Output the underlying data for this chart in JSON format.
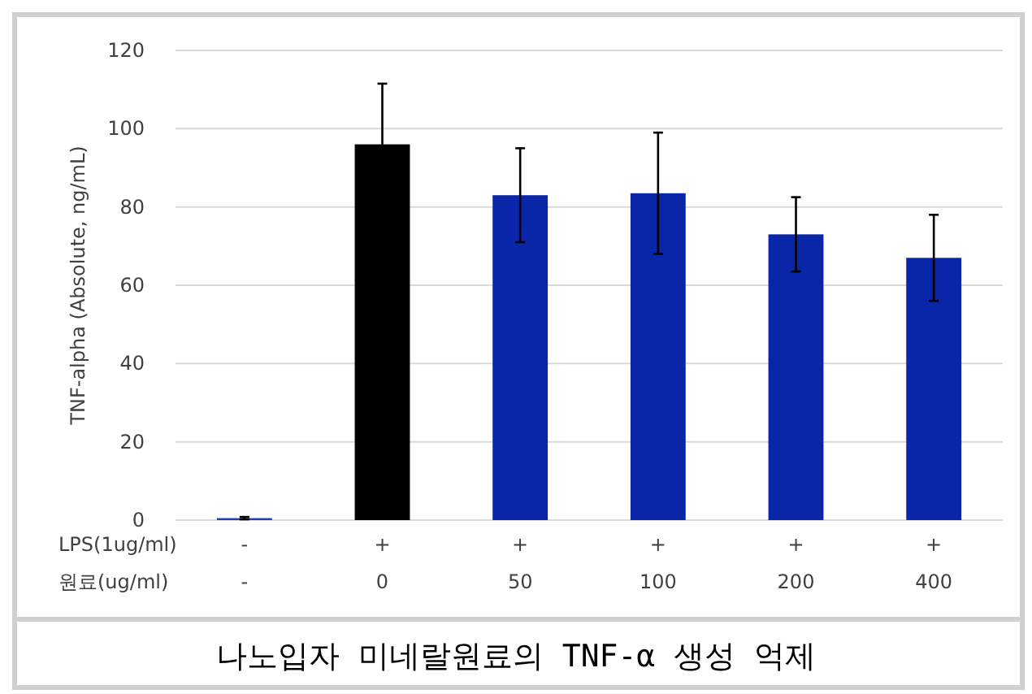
{
  "chart_data": {
    "type": "bar",
    "title": "나노입자 미네랄원료의 TNF-α 생성 억제",
    "ylabel": "TNF-alpha (Absolute, ng/mL)",
    "categories": [
      "-\n-",
      "+\n0",
      "+\n50",
      "+\n100",
      "+\n200",
      "+\n400"
    ],
    "values": [
      0.5,
      96,
      83,
      83.5,
      73,
      67
    ],
    "errors": [
      0.3,
      15.5,
      12,
      15.5,
      9.5,
      11
    ],
    "colors": [
      "#1f3fae",
      "#000000",
      "#0a26a8",
      "#0a26a8",
      "#0a26a8",
      "#0a26a8"
    ],
    "annotations": [
      "LPS(1ug/ml)",
      "원료(ug/ml)"
    ],
    "ylim": [
      0,
      120
    ],
    "yticks": [
      0,
      20,
      40,
      60,
      80,
      100,
      120
    ],
    "grid": "y"
  }
}
